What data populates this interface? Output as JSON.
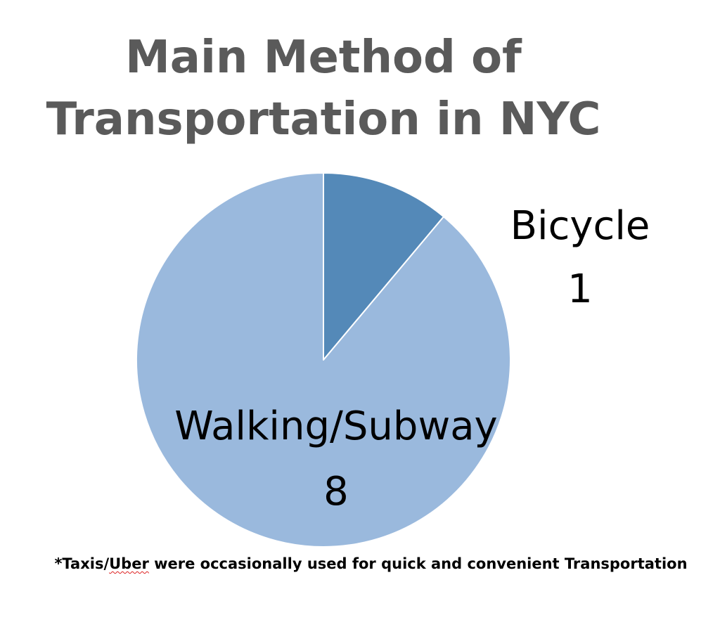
{
  "chart_data": {
    "type": "pie",
    "title_line1": "Main Method of",
    "title_line2": "Transportation in NYC",
    "categories": [
      "Bicycle",
      "Walking/Subway"
    ],
    "values": [
      1,
      8
    ],
    "colors": [
      "#5489b8",
      "#9ab9dd"
    ],
    "start_angle": "12 o'clock",
    "direction": "clockwise",
    "legend": "none",
    "labels_show": "category and value"
  },
  "footnote": {
    "prefix": "*Taxis/",
    "flagged_word": "Uber",
    "suffix": " were occasionally used for quick and convenient Transportation"
  }
}
